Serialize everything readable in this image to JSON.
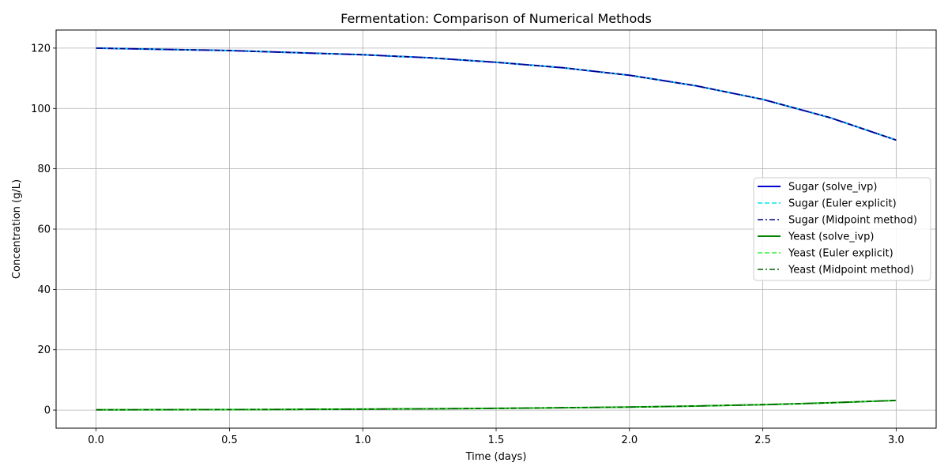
{
  "chart_data": {
    "type": "line",
    "title": "Fermentation: Comparison of Numerical Methods",
    "xlabel": "Time (days)",
    "ylabel": "Concentration (g/L)",
    "xlim": [
      -0.15,
      3.15
    ],
    "ylim": [
      -6,
      126
    ],
    "xticks": [
      0.0,
      0.5,
      1.0,
      1.5,
      2.0,
      2.5,
      3.0
    ],
    "xtick_labels": [
      "0.0",
      "0.5",
      "1.0",
      "1.5",
      "2.0",
      "2.5",
      "3.0"
    ],
    "yticks": [
      0,
      20,
      40,
      60,
      80,
      100,
      120
    ],
    "ytick_labels": [
      "0",
      "20",
      "40",
      "60",
      "80",
      "100",
      "120"
    ],
    "grid": true,
    "legend_position": "center-right",
    "x": [
      0.0,
      0.25,
      0.5,
      0.75,
      1.0,
      1.25,
      1.5,
      1.75,
      2.0,
      2.25,
      2.5,
      2.75,
      3.0
    ],
    "series": [
      {
        "name": "Sugar (solve_ivp)",
        "color": "#0000cc",
        "style": "solid",
        "width": 2,
        "values": [
          120.0,
          119.6,
          119.2,
          118.5,
          117.8,
          116.8,
          115.3,
          113.5,
          111.0,
          107.5,
          103.0,
          97.0,
          89.5
        ]
      },
      {
        "name": "Sugar (Euler explicit)",
        "color": "#00e5ee",
        "style": "dashed",
        "width": 1.6,
        "values": [
          120.0,
          119.6,
          119.2,
          118.5,
          117.8,
          116.8,
          115.3,
          113.5,
          111.0,
          107.5,
          103.0,
          97.0,
          89.5
        ]
      },
      {
        "name": "Sugar (Midpoint method)",
        "color": "#000080",
        "style": "dashdot",
        "width": 1.6,
        "values": [
          120.0,
          119.6,
          119.2,
          118.5,
          117.8,
          116.8,
          115.3,
          113.5,
          111.0,
          107.5,
          103.0,
          97.0,
          89.5
        ]
      },
      {
        "name": "Yeast (solve_ivp)",
        "color": "#008000",
        "style": "solid",
        "width": 2,
        "values": [
          0.1,
          0.13,
          0.17,
          0.23,
          0.32,
          0.43,
          0.58,
          0.78,
          1.0,
          1.35,
          1.8,
          2.4,
          3.2
        ]
      },
      {
        "name": "Yeast (Euler explicit)",
        "color": "#33ee33",
        "style": "dashed",
        "width": 1.6,
        "values": [
          0.1,
          0.13,
          0.17,
          0.23,
          0.32,
          0.43,
          0.58,
          0.78,
          1.0,
          1.35,
          1.8,
          2.4,
          3.2
        ]
      },
      {
        "name": "Yeast (Midpoint method)",
        "color": "#006400",
        "style": "dashdot",
        "width": 1.6,
        "values": [
          0.1,
          0.13,
          0.17,
          0.23,
          0.32,
          0.43,
          0.58,
          0.78,
          1.0,
          1.35,
          1.8,
          2.4,
          3.2
        ]
      }
    ]
  }
}
